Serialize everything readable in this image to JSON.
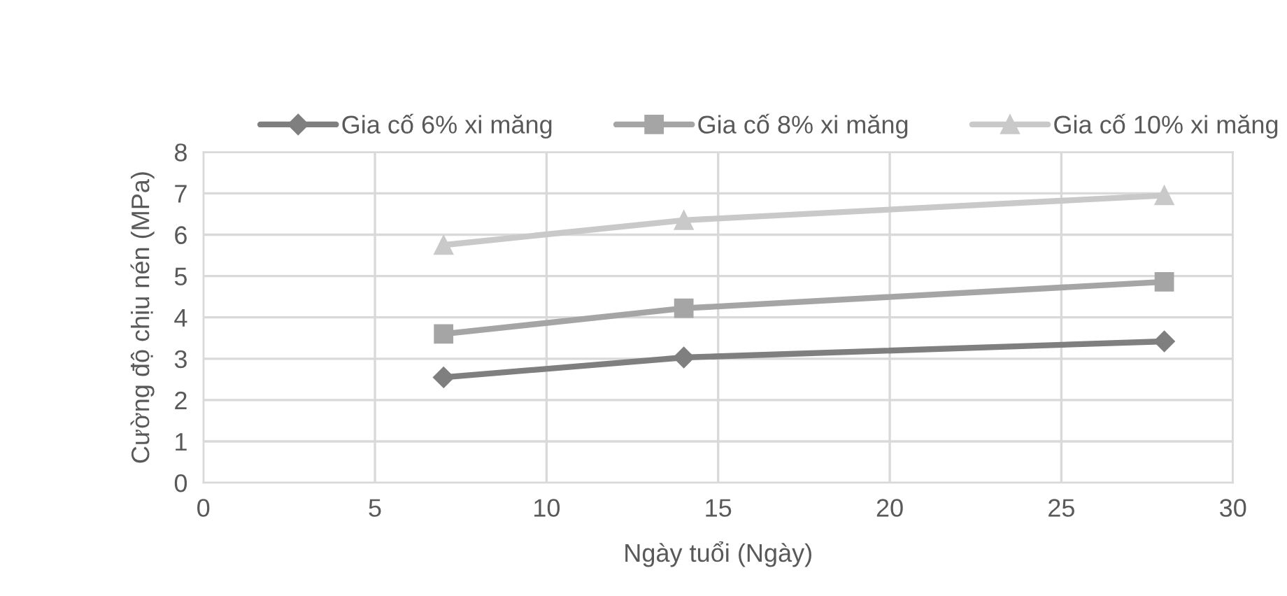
{
  "chart_data": {
    "type": "line",
    "xlabel": "Ngày tuổi (Ngày)",
    "ylabel": "Cường độ chịu nén (MPa)",
    "x": [
      7,
      14,
      28
    ],
    "series": [
      {
        "name": "Gia cố 6% xi măng",
        "color": "#7f7f7f",
        "marker": "diamond",
        "values": [
          2.55,
          3.03,
          3.42
        ]
      },
      {
        "name": "Gia cố 8% xi măng",
        "color": "#a5a5a5",
        "marker": "square",
        "values": [
          3.6,
          4.22,
          4.86
        ]
      },
      {
        "name": "Gia cố 10% xi măng",
        "color": "#c9c9c9",
        "marker": "triangle",
        "values": [
          5.75,
          6.35,
          6.95
        ]
      }
    ],
    "xlim": [
      0,
      30
    ],
    "xticks": [
      0,
      5,
      10,
      15,
      20,
      25,
      30
    ],
    "ylim": [
      0,
      8
    ],
    "yticks": [
      0,
      1,
      2,
      3,
      4,
      5,
      6,
      7,
      8
    ],
    "grid": true,
    "legend": "top",
    "line_style": "solid"
  }
}
